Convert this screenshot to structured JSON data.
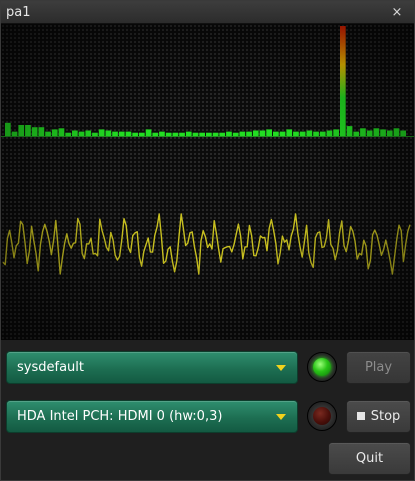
{
  "window": {
    "title": "pa1",
    "close_glyph": "×"
  },
  "visualizer": {
    "spectrum_color_low": "#22dd22",
    "spectrum_color_peak": "#ff2200",
    "waveform_color": "#c8c020",
    "spectrum_levels": [
      0.12,
      0.04,
      0.1,
      0.1,
      0.08,
      0.08,
      0.04,
      0.06,
      0.07,
      0.03,
      0.05,
      0.04,
      0.05,
      0.03,
      0.06,
      0.05,
      0.04,
      0.04,
      0.04,
      0.03,
      0.03,
      0.06,
      0.03,
      0.04,
      0.03,
      0.03,
      0.03,
      0.04,
      0.03,
      0.03,
      0.03,
      0.03,
      0.03,
      0.04,
      0.03,
      0.04,
      0.04,
      0.05,
      0.05,
      0.06,
      0.04,
      0.04,
      0.06,
      0.04,
      0.04,
      0.05,
      0.04,
      0.04,
      0.05,
      0.06,
      1.0,
      0.09,
      0.04,
      0.07,
      0.05,
      0.07,
      0.06,
      0.05,
      0.07,
      0.05
    ]
  },
  "controls": {
    "input_device": {
      "value": "sysdefault"
    },
    "output_device": {
      "value": "HDA Intel PCH: HDMI 0 (hw:0,3)"
    },
    "input_led": {
      "state": "on"
    },
    "output_led": {
      "state": "off"
    },
    "play_label": "Play",
    "stop_label": "Stop",
    "quit_label": "Quit"
  }
}
